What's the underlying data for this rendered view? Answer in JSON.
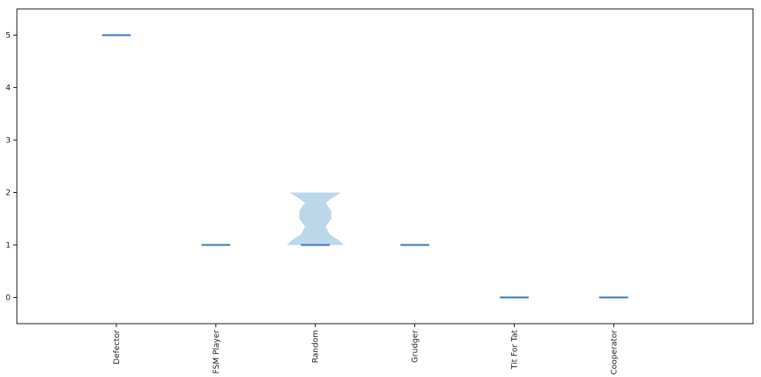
{
  "chart_data": {
    "type": "violin",
    "title": "",
    "xlabel": "",
    "ylabel": "",
    "categories": [
      "Defector",
      "FSM Player",
      "Random",
      "Grudger",
      "Tit For Tat",
      "Cooperator"
    ],
    "ylim": [
      -0.5,
      5.5
    ],
    "yticks": [
      0,
      1,
      2,
      3,
      4,
      5
    ],
    "grid": false,
    "legend": "none",
    "series": [
      {
        "category": "Defector",
        "median": 5,
        "min": 5,
        "max": 5
      },
      {
        "category": "FSM Player",
        "median": 1,
        "min": 1,
        "max": 1
      },
      {
        "category": "Random",
        "median": 1,
        "min": 1,
        "max": 2,
        "density_profile": [
          [
            1.0,
            0.5
          ],
          [
            1.1,
            0.4
          ],
          [
            1.2,
            0.25
          ],
          [
            1.35,
            0.18
          ],
          [
            1.5,
            0.28
          ],
          [
            1.65,
            0.28
          ],
          [
            1.8,
            0.18
          ],
          [
            1.9,
            0.3
          ],
          [
            2.0,
            0.45
          ]
        ]
      },
      {
        "category": "Grudger",
        "median": 1,
        "min": 1,
        "max": 1
      },
      {
        "category": "Tit For Tat",
        "median": 0,
        "min": 0,
        "max": 0
      },
      {
        "category": "Cooperator",
        "median": 0,
        "min": 0,
        "max": 0
      }
    ],
    "colors": {
      "median": "#3b78b8",
      "body": "#bcd6ea",
      "axis": "#222222"
    }
  }
}
